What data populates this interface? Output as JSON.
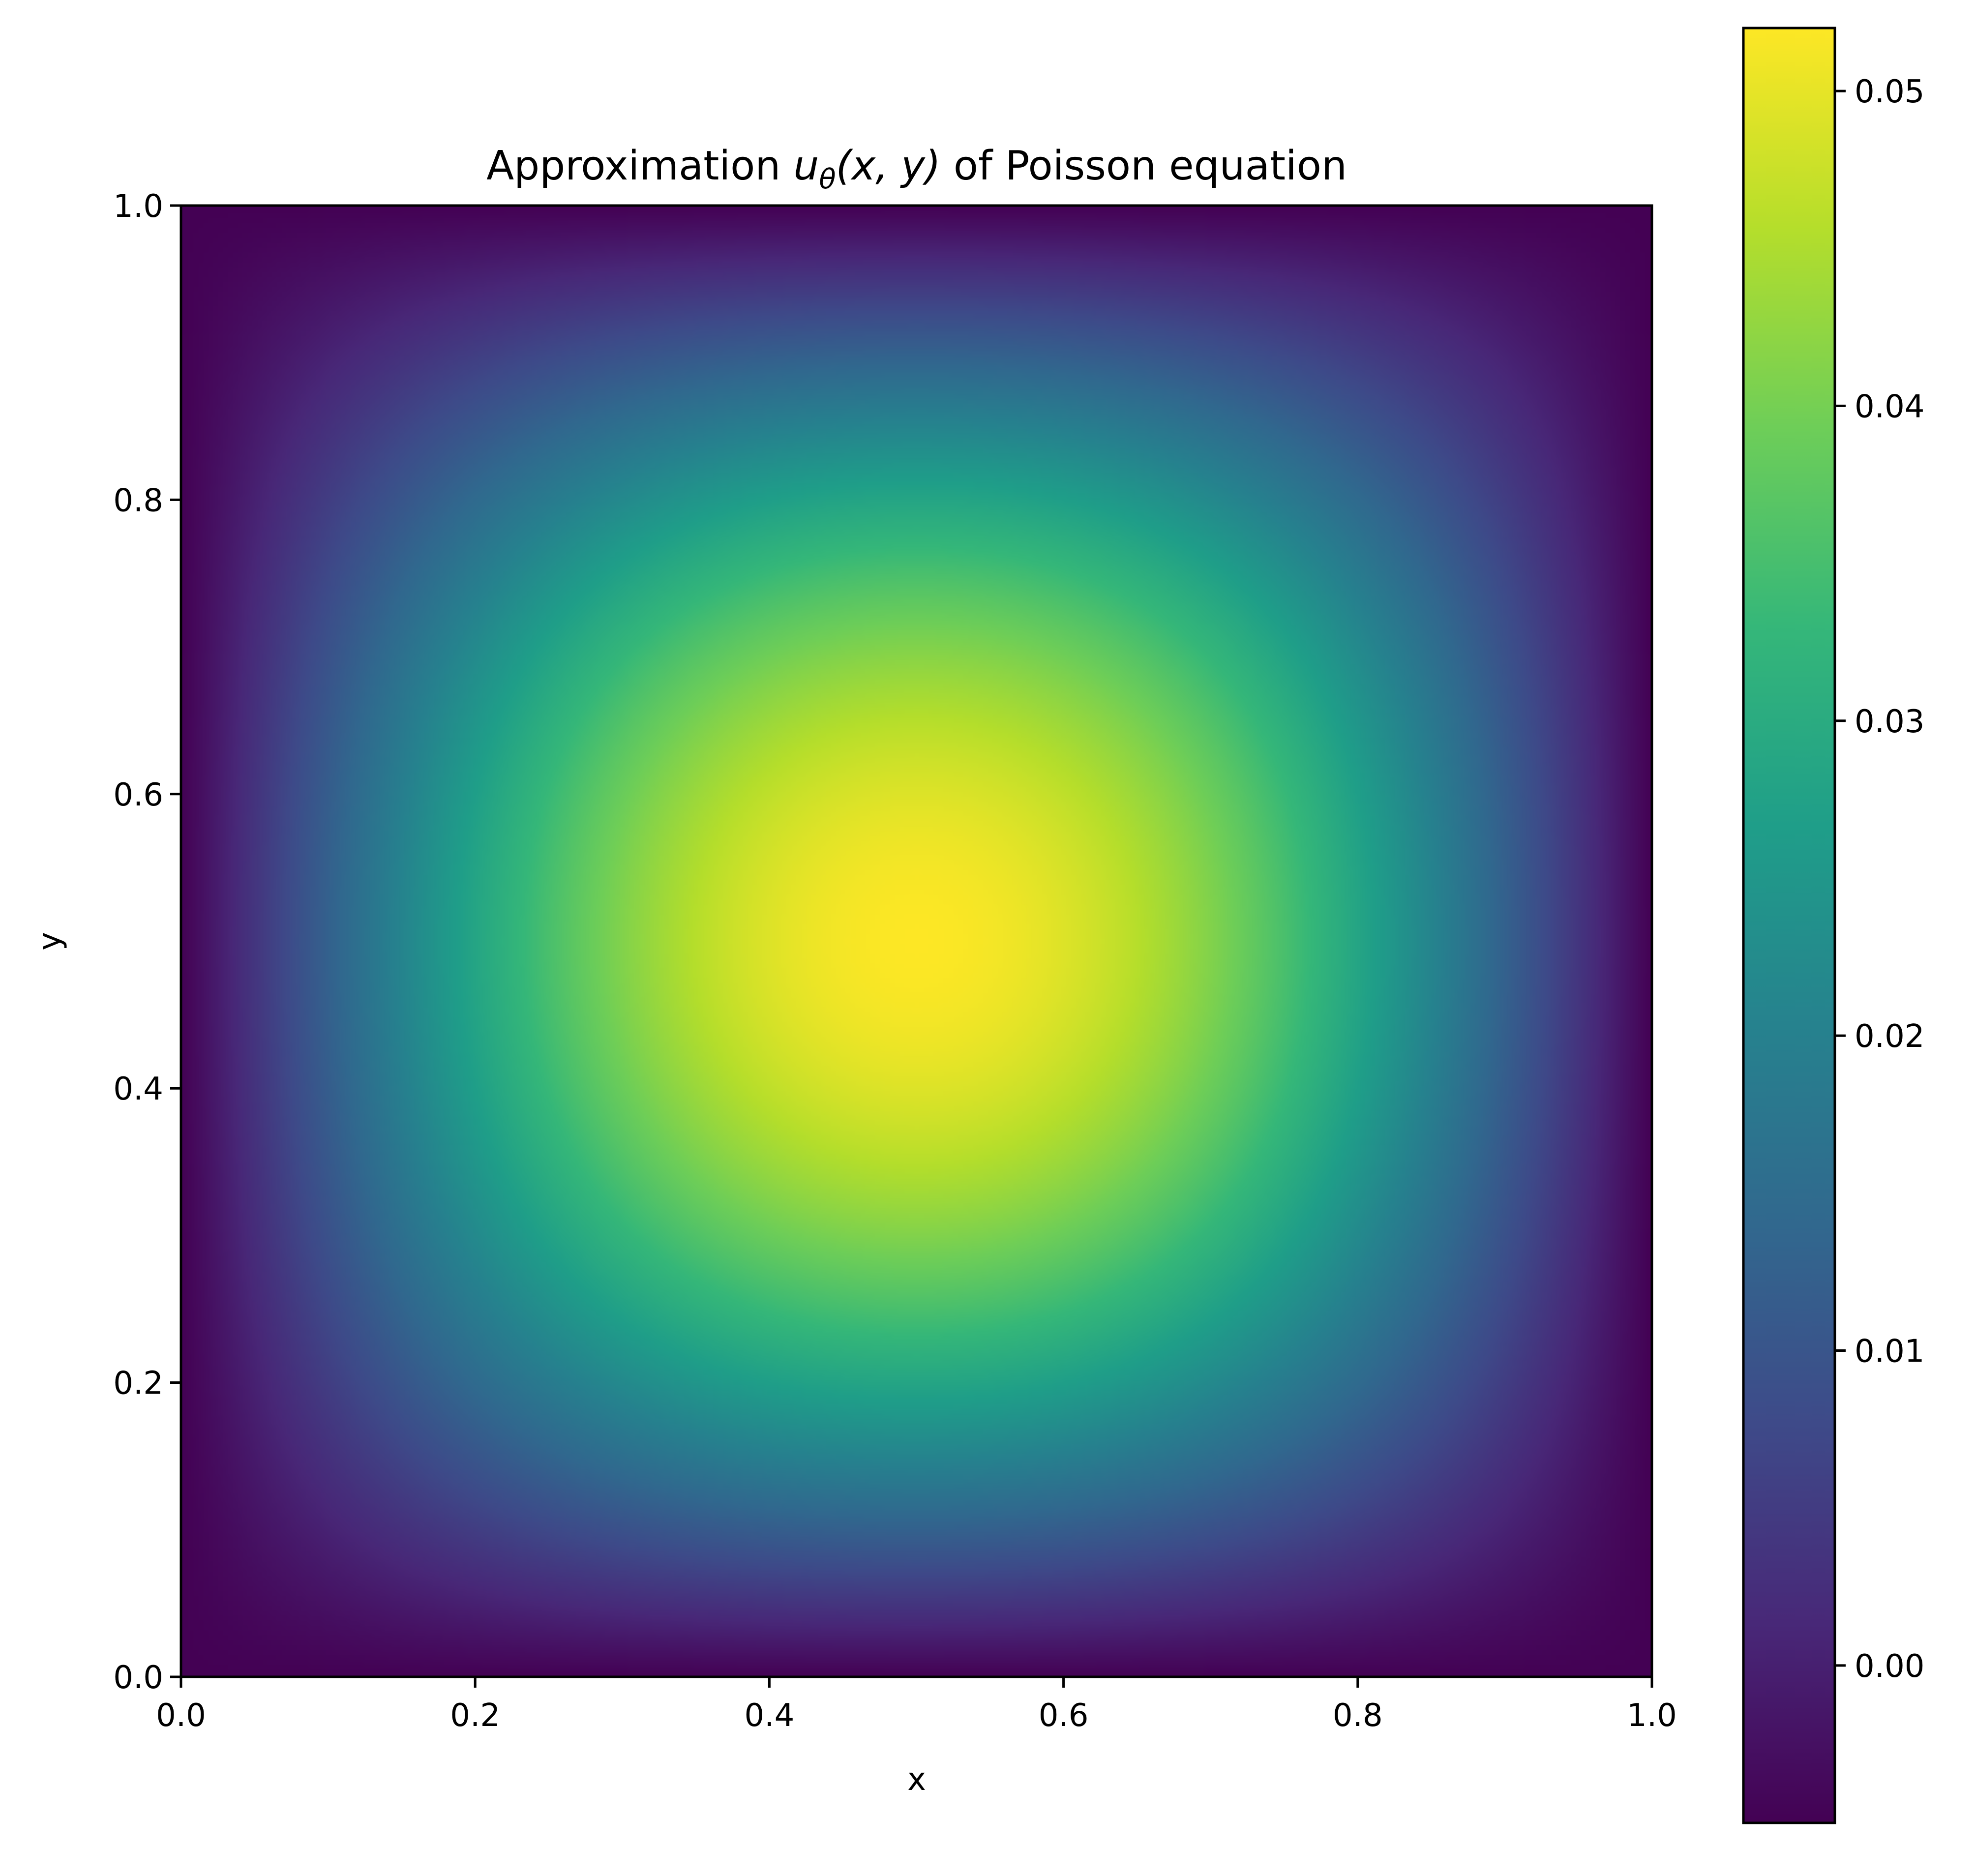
{
  "chart_data": {
    "type": "heatmap",
    "title": {
      "prefix": "Approximation ",
      "symbol": "u",
      "subscript": "θ",
      "args": "(x, y)",
      "suffix": " of Poisson equation"
    },
    "xlabel": "x",
    "ylabel": "y",
    "xlim": [
      0.0,
      1.0
    ],
    "ylim": [
      0.0,
      1.0
    ],
    "x_ticks": [
      "0.0",
      "0.2",
      "0.4",
      "0.6",
      "0.8",
      "1.0"
    ],
    "y_ticks": [
      "0.0",
      "0.2",
      "0.4",
      "0.6",
      "0.8",
      "1.0"
    ],
    "field": {
      "description_formula": "u(x,y) ≈ offset + amplitude·sin(πx)·sin(πy)",
      "peak_location": [
        0.5,
        0.5
      ],
      "peak_value": 0.052,
      "boundary_value": -0.005
    },
    "colorbar": {
      "colormap": "viridis",
      "vmin": -0.005,
      "vmax": 0.052,
      "ticks": [
        0.0,
        0.01,
        0.02,
        0.03,
        0.04,
        0.05
      ],
      "tick_labels": [
        "0.00",
        "0.01",
        "0.02",
        "0.03",
        "0.04",
        "0.05"
      ]
    },
    "grid": false,
    "colors": {
      "viridis_stops": [
        "#440154",
        "#482878",
        "#3e4a89",
        "#31688e",
        "#26828e",
        "#1f9e89",
        "#35b779",
        "#6ece58",
        "#b5de2b",
        "#fde725"
      ]
    }
  }
}
